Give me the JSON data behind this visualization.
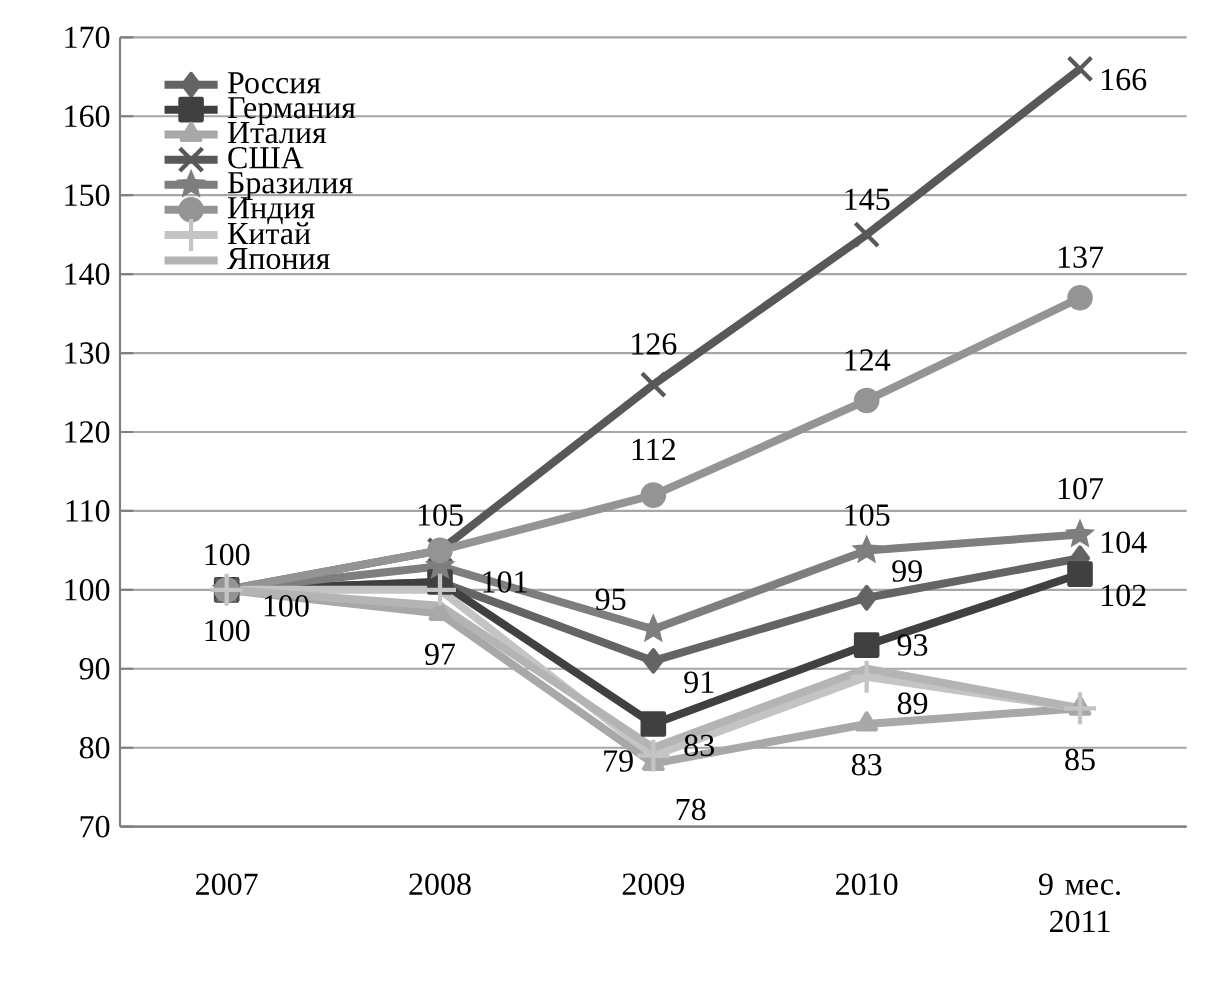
{
  "chart_data": {
    "type": "line",
    "categories": [
      "2007",
      "2008",
      "2009",
      "2010",
      "9 мес. 2011"
    ],
    "ylim": [
      70,
      170
    ],
    "yticks": [
      70,
      80,
      90,
      100,
      110,
      120,
      130,
      140,
      150,
      160,
      170
    ],
    "grid": "y",
    "legend": "top left",
    "series": [
      {
        "name": "Россия",
        "color": "#646464",
        "marker": "diamond",
        "values": [
          100,
          101,
          91,
          99,
          104
        ],
        "value_labels": [
          null,
          "101",
          "91",
          "99",
          "104"
        ]
      },
      {
        "name": "Германия",
        "color": "#404040",
        "marker": "square",
        "values": [
          100,
          101,
          83,
          93,
          102
        ],
        "value_labels": [
          null,
          null,
          "83",
          "93",
          "102"
        ]
      },
      {
        "name": "Италия",
        "color": "#a8a8a8",
        "marker": "triangle",
        "values": [
          100,
          97,
          78,
          83,
          85
        ],
        "value_labels": [
          "100",
          "97",
          "78",
          "83",
          "85"
        ]
      },
      {
        "name": "США",
        "color": "#585858",
        "marker": "cross",
        "values": [
          100,
          105,
          126,
          145,
          166
        ],
        "value_labels": [
          "100",
          "105",
          "126",
          "145",
          "166"
        ]
      },
      {
        "name": "Бразилия",
        "color": "#7e7e7e",
        "marker": "star",
        "values": [
          100,
          103,
          95,
          105,
          107
        ],
        "value_labels": [
          null,
          null,
          "95",
          "105",
          "107"
        ]
      },
      {
        "name": "Индия",
        "color": "#949494",
        "marker": "circle",
        "values": [
          100,
          105,
          112,
          124,
          137
        ],
        "value_labels": [
          "100",
          null,
          "112",
          "124",
          "137"
        ]
      },
      {
        "name": "Китай",
        "color": "#c4c4c4",
        "marker": "plus",
        "values": [
          100,
          100,
          79,
          89,
          85
        ],
        "value_labels": [
          null,
          null,
          "79",
          "89",
          null
        ]
      },
      {
        "name": "Япония",
        "color": "#b4b4b4",
        "marker": "none",
        "values": [
          100,
          98,
          80,
          90,
          85
        ],
        "value_labels": [
          null,
          null,
          null,
          null,
          null
        ]
      }
    ]
  }
}
